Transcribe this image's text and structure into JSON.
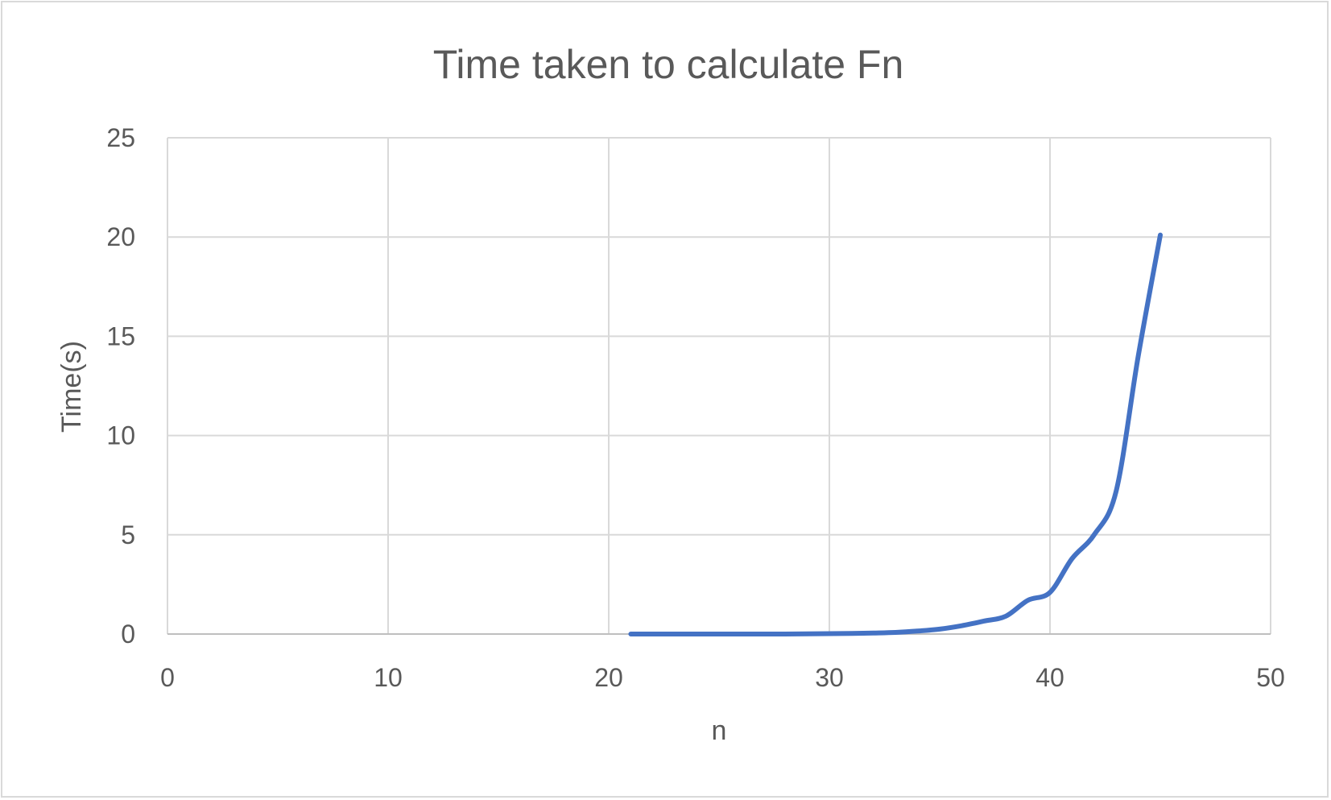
{
  "chart_data": {
    "type": "line",
    "title": "Time taken to calculate Fn",
    "xlabel": "n",
    "ylabel": "Time(s)",
    "xlim": [
      0,
      50
    ],
    "ylim": [
      0,
      25
    ],
    "x_ticks": [
      "0",
      "10",
      "20",
      "30",
      "40",
      "50"
    ],
    "y_ticks": [
      "0",
      "5",
      "10",
      "15",
      "20",
      "25"
    ],
    "grid": true,
    "smooth": true,
    "series": [
      {
        "color": "#4472c4",
        "x": [
          21,
          22,
          23,
          24,
          25,
          26,
          27,
          28,
          29,
          30,
          31,
          32,
          33,
          34,
          35,
          36,
          37,
          38,
          39,
          40,
          41,
          42,
          43,
          44,
          45
        ],
        "y": [
          0,
          0,
          0,
          0,
          0,
          0,
          0,
          0,
          0.01,
          0.02,
          0.03,
          0.05,
          0.08,
          0.15,
          0.25,
          0.42,
          0.65,
          0.9,
          1.7,
          2.1,
          3.8,
          5.0,
          7.2,
          14.0,
          20.1
        ]
      }
    ]
  }
}
